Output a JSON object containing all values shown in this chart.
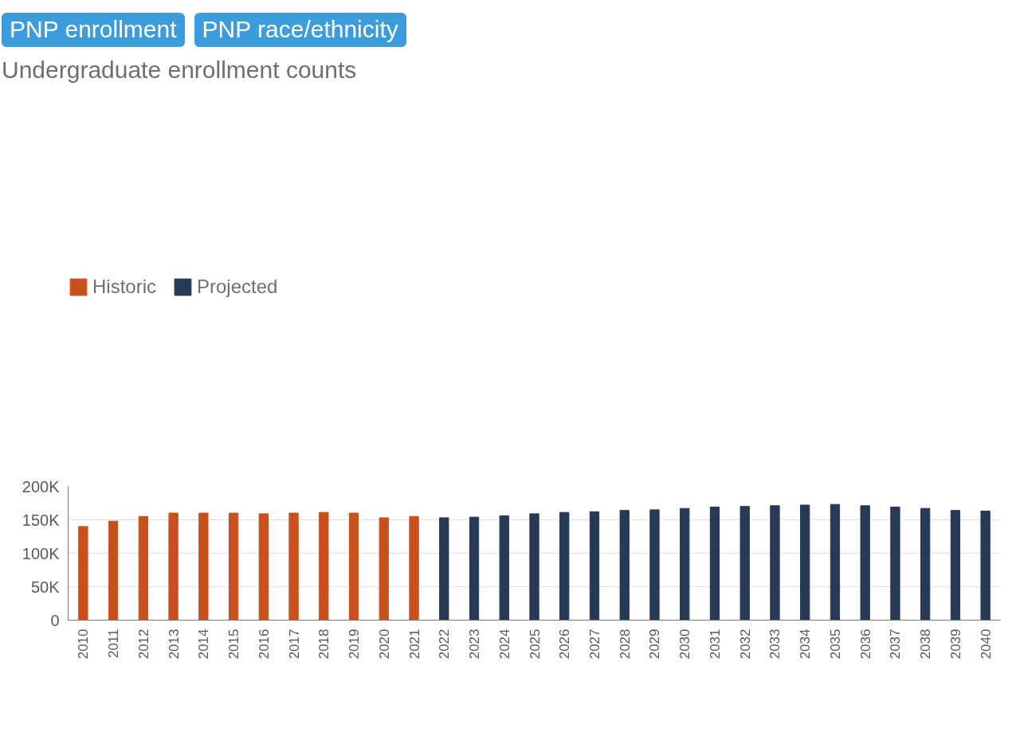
{
  "chart_data": {
    "type": "bar",
    "title": "Undergraduate enrollment counts",
    "annotations": [
      "PNP enrollment",
      "PNP race/ethnicity"
    ],
    "categories": [
      "2010",
      "2011",
      "2012",
      "2013",
      "2014",
      "2015",
      "2016",
      "2017",
      "2018",
      "2019",
      "2020",
      "2021",
      "2022",
      "2023",
      "2024",
      "2025",
      "2026",
      "2027",
      "2028",
      "2029",
      "2030",
      "2031",
      "2032",
      "2033",
      "2034",
      "2035",
      "2036",
      "2037",
      "2038",
      "2039",
      "2040"
    ],
    "series": [
      {
        "name": "Historic",
        "color": "#c9501c",
        "values": [
          140000,
          148000,
          155000,
          160000,
          160000,
          160000,
          159000,
          160000,
          161000,
          160000,
          153000,
          155000,
          null,
          null,
          null,
          null,
          null,
          null,
          null,
          null,
          null,
          null,
          null,
          null,
          null,
          null,
          null,
          null,
          null,
          null,
          null
        ]
      },
      {
        "name": "Projected",
        "color": "#273a55",
        "values": [
          null,
          null,
          null,
          null,
          null,
          null,
          null,
          null,
          null,
          null,
          null,
          null,
          153000,
          154000,
          156000,
          159000,
          161000,
          162000,
          164000,
          165000,
          167000,
          169000,
          170000,
          171000,
          172000,
          173000,
          171000,
          169000,
          167000,
          164000,
          163000
        ]
      }
    ],
    "ylim": [
      0,
      200000
    ],
    "yticks": [
      {
        "value": 0,
        "label": "0"
      },
      {
        "value": 50000,
        "label": "50K"
      },
      {
        "value": 100000,
        "label": "100K"
      },
      {
        "value": 150000,
        "label": "150K"
      },
      {
        "value": 200000,
        "label": "200K"
      }
    ],
    "grid": "y",
    "legend": "top left"
  }
}
